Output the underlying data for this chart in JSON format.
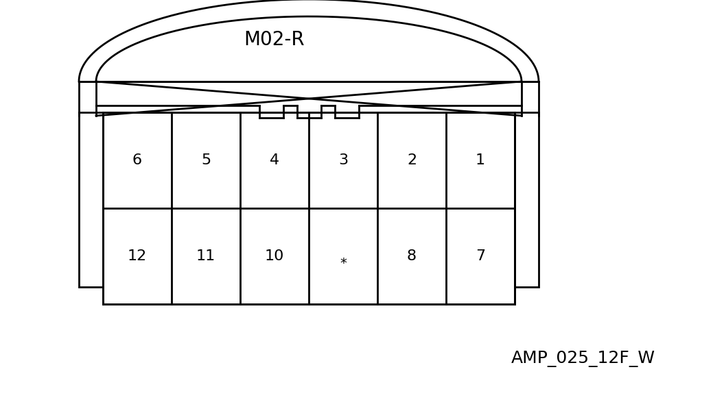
{
  "title": "M02-R",
  "subtitle": "AMP_025_12F_W",
  "background_color": "#ffffff",
  "line_color": "#000000",
  "title_fontsize": 20,
  "subtitle_fontsize": 18,
  "top_row_labels": [
    "6",
    "5",
    "4",
    "3",
    "2",
    "1"
  ],
  "bottom_row_labels": [
    "12",
    "11",
    "10",
    "*",
    "8",
    "7"
  ],
  "pin9_empty": true,
  "figsize": [
    10.39,
    5.84
  ],
  "dpi": 100
}
